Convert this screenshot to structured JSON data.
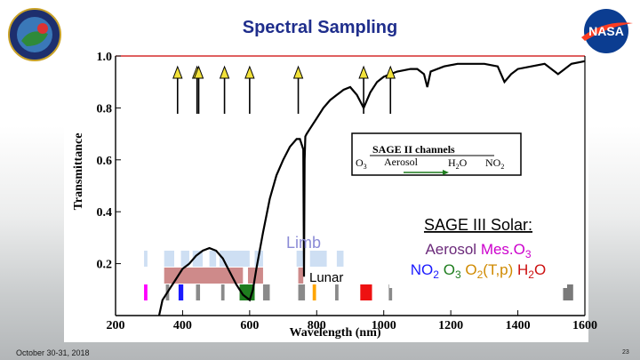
{
  "slide": {
    "title": "Spectral Sampling",
    "footer_date": "October 30-31, 2018",
    "page_number": "23",
    "logo_left_text": "SAGE III · ISS",
    "logo_right_text": "NASA"
  },
  "colors": {
    "title": "#1f2e8c",
    "curve": "#000000",
    "limb": "#c9dcf2",
    "lunar": "#c97d7d"
  },
  "chart_data": {
    "type": "line",
    "title": "",
    "xlabel": "Wavelength (nm)",
    "ylabel": "Transmittance",
    "xlim": [
      200,
      1600
    ],
    "ylim": [
      0,
      1.0
    ],
    "xticks": [
      "200",
      "400",
      "600",
      "800",
      "1000",
      "1200",
      "1400",
      "1600"
    ],
    "yticks": [
      "0.2",
      "0.4",
      "0.6",
      "0.8",
      "1.0"
    ],
    "series": [
      {
        "x": [
          330,
          340,
          360,
          380,
          400,
          420,
          440,
          460,
          480,
          500,
          520,
          540,
          560,
          580,
          600,
          610,
          620,
          640,
          660,
          680,
          700,
          720,
          740,
          750,
          760,
          762,
          764,
          766,
          770,
          780,
          800,
          820,
          840,
          860,
          880,
          900,
          920,
          940,
          960,
          980,
          1000,
          1040,
          1080,
          1100,
          1120,
          1130,
          1140,
          1180,
          1220,
          1260,
          1300,
          1340,
          1360,
          1380,
          1400,
          1440,
          1480,
          1520,
          1560,
          1600
        ],
        "y": [
          0.0,
          0.06,
          0.1,
          0.14,
          0.18,
          0.2,
          0.23,
          0.25,
          0.26,
          0.25,
          0.22,
          0.17,
          0.12,
          0.08,
          0.06,
          0.1,
          0.18,
          0.32,
          0.45,
          0.54,
          0.6,
          0.65,
          0.68,
          0.68,
          0.64,
          0.15,
          0.6,
          0.69,
          0.7,
          0.72,
          0.76,
          0.8,
          0.83,
          0.85,
          0.87,
          0.88,
          0.85,
          0.8,
          0.86,
          0.9,
          0.92,
          0.94,
          0.95,
          0.95,
          0.93,
          0.88,
          0.94,
          0.96,
          0.97,
          0.97,
          0.97,
          0.96,
          0.9,
          0.93,
          0.95,
          0.96,
          0.97,
          0.93,
          0.97,
          0.98
        ]
      }
    ],
    "channel_arrows_nm": [
      385,
      443,
      448,
      525,
      600,
      745,
      940,
      1020
    ],
    "sage2_legend": {
      "heading": "SAGE II  channels",
      "o3": "O",
      "o3_sub": "3",
      "aerosol": "Aerosol",
      "h2o_h": "H",
      "h2o_sub": "2",
      "h2o_o": "O",
      "no2": "NO",
      "no2_sub": "2"
    },
    "limb": {
      "label": "Limb",
      "bands_nm": [
        [
          285,
          295
        ],
        [
          345,
          375
        ],
        [
          395,
          420
        ],
        [
          430,
          460
        ],
        [
          480,
          500
        ],
        [
          510,
          600
        ],
        [
          615,
          640
        ],
        [
          740,
          760
        ],
        [
          780,
          830
        ],
        [
          860,
          880
        ],
        [
          1020,
          1040
        ],
        [
          1220,
          1240
        ]
      ]
    },
    "lunar": {
      "label": "Lunar",
      "bands_nm": [
        [
          345,
          580
        ],
        [
          595,
          640
        ],
        [
          745,
          760
        ]
      ]
    },
    "channels": [
      {
        "nm": [
          285,
          295
        ],
        "color": "#ff00ff"
      },
      {
        "nm": [
          350,
          360
        ],
        "color": "#8a8a8a"
      },
      {
        "nm": [
          388,
          402
        ],
        "color": "#1a1aff"
      },
      {
        "nm": [
          440,
          452
        ],
        "color": "#8a8a8a"
      },
      {
        "nm": [
          515,
          525
        ],
        "color": "#8a8a8a"
      },
      {
        "nm": [
          570,
          615
        ],
        "color": "#1e7d1e"
      },
      {
        "nm": [
          640,
          660
        ],
        "color": "#8a8a8a"
      },
      {
        "nm": [
          745,
          765
        ],
        "color": "#8a8a8a"
      },
      {
        "nm": [
          788,
          798
        ],
        "color": "#ffa500"
      },
      {
        "nm": [
          855,
          865
        ],
        "color": "#8a8a8a"
      },
      {
        "nm": [
          930,
          965
        ],
        "color": "#ee1111"
      },
      {
        "nm": [
          1015,
          1025
        ],
        "color": "#8a8a8a"
      },
      {
        "nm": [
          1535,
          1565
        ],
        "color": "#7a7a7a"
      }
    ],
    "solar_box": {
      "heading": "SAGE III Solar:",
      "aerosol": "Aerosol",
      "meso3": "Mes.O",
      "meso3_sub": "3",
      "no2": "NO",
      "no2_sub": "2",
      "o3": "O",
      "o3_sub": "3",
      "o2": "O",
      "o2_sub": "2",
      "o2_tail": "(T,p)",
      "h2o_h": "H",
      "h2o_sub": "2",
      "h2o_o": "O"
    }
  }
}
